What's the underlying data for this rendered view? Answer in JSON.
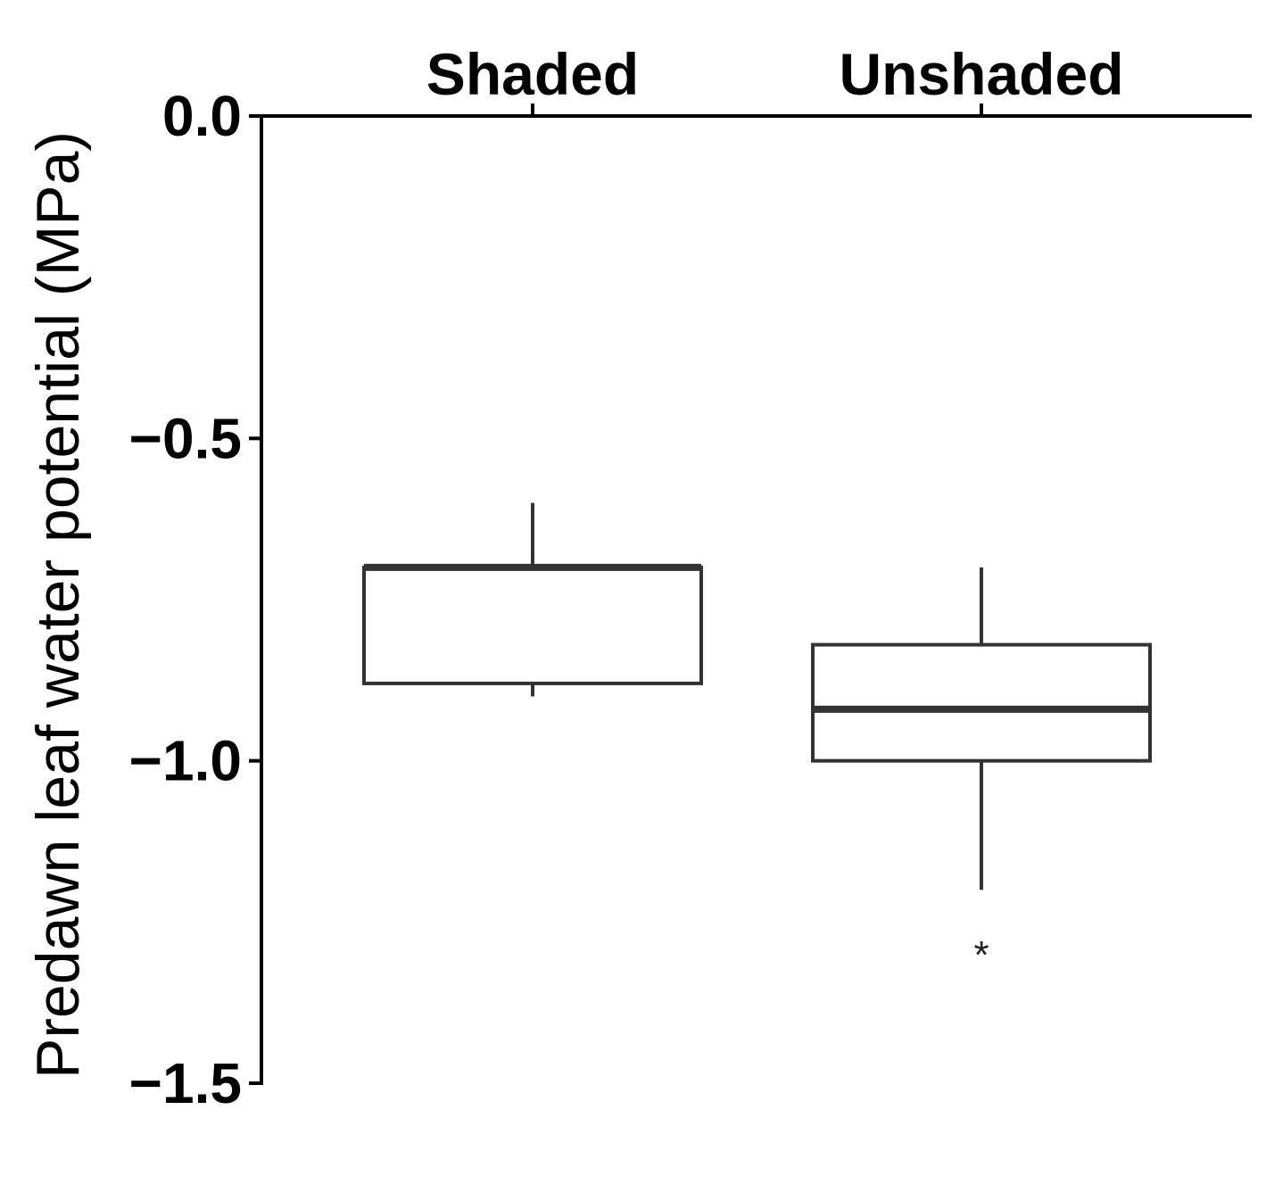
{
  "chart_data": {
    "type": "box",
    "ylabel": "Predawn leaf water potential (MPa)",
    "xlabel": "",
    "title": "",
    "x_axis_position": "top",
    "ylim": [
      -1.5,
      0.0
    ],
    "yticks": [
      0.0,
      -0.5,
      -1.0,
      -1.5
    ],
    "ytick_labels": [
      "0.0",
      "−0.5",
      "−1.0",
      "−1.5"
    ],
    "categories": [
      "Shaded",
      "Unshaded"
    ],
    "boxes": [
      {
        "category": "Shaded",
        "whisker_high": -0.6,
        "q3": -0.7,
        "median": -0.7,
        "q1": -0.88,
        "whisker_low": -0.9,
        "outliers": []
      },
      {
        "category": "Unshaded",
        "whisker_high": -0.7,
        "q3": -0.82,
        "median": -0.92,
        "q1": -1.0,
        "whisker_low": -1.2,
        "outliers": [
          {
            "value": -1.28,
            "marker": "*"
          }
        ]
      }
    ],
    "grid": false,
    "legend": "none",
    "colors": {
      "box_stroke": "#333333",
      "axis": "#000000"
    }
  }
}
